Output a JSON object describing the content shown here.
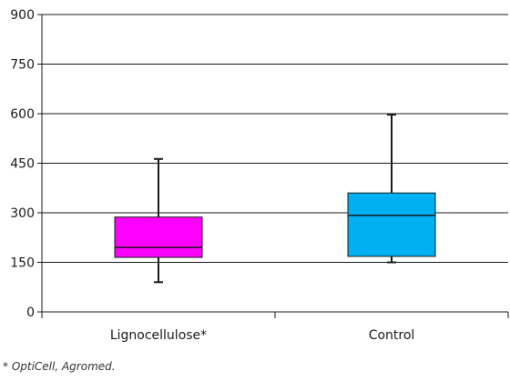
{
  "chart_data": {
    "type": "boxplot",
    "title": "",
    "xlabel": "",
    "ylabel": "",
    "ylim": [
      0,
      900
    ],
    "yticks": [
      0,
      150,
      300,
      450,
      600,
      750,
      900
    ],
    "grid": true,
    "categories": [
      "Lignocellulose*",
      "Control"
    ],
    "boxes": [
      {
        "category": "Lignocellulose*",
        "whisker_low": 90,
        "q1": 165,
        "median": 195,
        "q3": 287,
        "whisker_high": 463,
        "color": "#ff00ff"
      },
      {
        "category": "Control",
        "whisker_low": 150,
        "q1": 168,
        "median": 292,
        "q3": 360,
        "whisker_high": 597,
        "color": "#00b0f0"
      }
    ]
  },
  "footnote": "* OptiCell, Agromed."
}
